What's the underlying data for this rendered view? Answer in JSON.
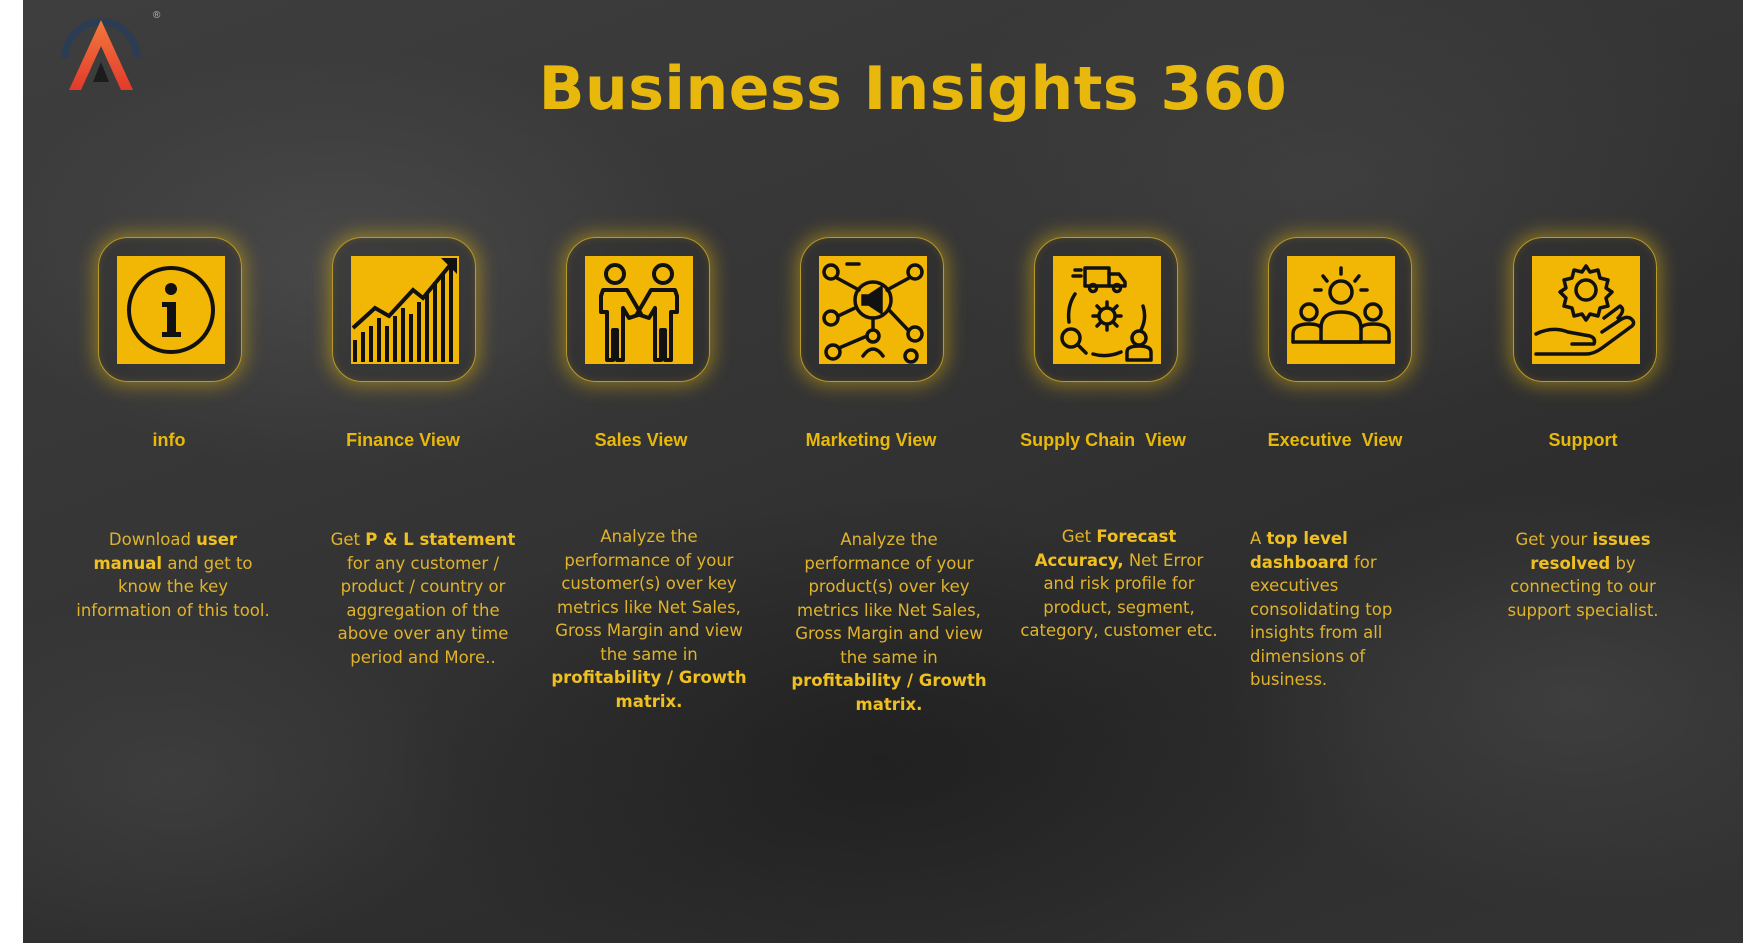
{
  "page": {
    "title": "Business Insights 360"
  },
  "colors": {
    "accent": "#e8b90c",
    "tile_fill": "#f2b705",
    "background": "#333333",
    "logo_gradient_top": "#f36b3b",
    "logo_gradient_bottom": "#e0352b"
  },
  "logo": {
    "icon": "atliq-logo-icon",
    "registered_mark": "®"
  },
  "cards": [
    {
      "id": "info",
      "icon": "info-icon",
      "title": "info",
      "desc": {
        "p1": "Download ",
        "b1": "user manual",
        "p2": " and get to know the key information of this tool."
      }
    },
    {
      "id": "finance",
      "icon": "growth-chart-icon",
      "title": "Finance View",
      "desc": {
        "p1": "Get  ",
        "b1": "P & L statement",
        "p2": " for any customer / product / country or aggregation of the above over any time period and More.."
      }
    },
    {
      "id": "sales",
      "icon": "handshake-icon",
      "title": "Sales View",
      "desc": {
        "p1": "Analyze the performance of your customer(s) over key metrics like Net Sales, Gross Margin and view the same in ",
        "b1": "profitability / Growth matrix."
      }
    },
    {
      "id": "marketing",
      "icon": "megaphone-network-icon",
      "title": "Marketing View",
      "desc": {
        "p1": "Analyze the performance of your product(s) over key metrics like Net Sales, Gross Margin and view the same in ",
        "b1": "profitability / Growth matrix."
      }
    },
    {
      "id": "supply",
      "icon": "supply-chain-icon",
      "title": "Supply Chain  View",
      "desc": {
        "p1": "Get ",
        "b1": "Forecast Accuracy,",
        "p2": " Net Error and risk profile for product, segment, category, customer etc."
      }
    },
    {
      "id": "executive",
      "icon": "team-leader-icon",
      "title": "Executive  View",
      "desc": {
        "p1": "A ",
        "b1": "top level dashboard",
        "p2": " for executives consolidating top insights from all dimensions of business."
      }
    },
    {
      "id": "support",
      "icon": "gear-hand-icon",
      "title": "Support",
      "desc": {
        "p1": "Get your ",
        "b1": "issues resolved",
        "p2": " by connecting to our support specialist."
      }
    }
  ]
}
